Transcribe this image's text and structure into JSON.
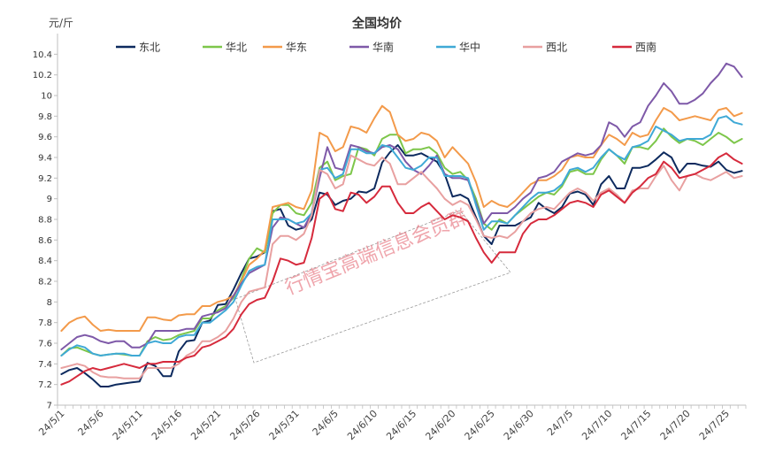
{
  "chart_data": {
    "type": "line",
    "title": "全国均价",
    "ylabel": "元/斤",
    "xlabel": "",
    "ylim": [
      7,
      10.6
    ],
    "yticks": [
      7,
      7.2,
      7.4,
      7.6,
      7.8,
      8,
      8.2,
      8.4,
      8.6,
      8.8,
      9,
      9.2,
      9.4,
      9.6,
      9.8,
      10,
      10.2,
      10.4
    ],
    "grid": false,
    "legend_position": "top",
    "x": [
      "24/5/1",
      "24/5/2",
      "24/5/3",
      "24/5/4",
      "24/5/5",
      "24/5/6",
      "24/5/7",
      "24/5/8",
      "24/5/9",
      "24/5/10",
      "24/5/11",
      "24/5/12",
      "24/5/13",
      "24/5/14",
      "24/5/15",
      "24/5/16",
      "24/5/17",
      "24/5/18",
      "24/5/19",
      "24/5/20",
      "24/5/21",
      "24/5/22",
      "24/5/23",
      "24/5/24",
      "24/5/25",
      "24/5/26",
      "24/5/27",
      "24/5/28",
      "24/5/29",
      "24/5/30",
      "24/5/31",
      "24/6/1",
      "24/6/2",
      "24/6/3",
      "24/6/4",
      "24/6/5",
      "24/6/6",
      "24/6/7",
      "24/6/8",
      "24/6/9",
      "24/6/10",
      "24/6/11",
      "24/6/12",
      "24/6/13",
      "24/6/14",
      "24/6/15",
      "24/6/16",
      "24/6/17",
      "24/6/18",
      "24/6/19",
      "24/6/20",
      "24/6/21",
      "24/6/22",
      "24/6/23",
      "24/6/24",
      "24/6/25",
      "24/6/26",
      "24/6/27",
      "24/6/28",
      "24/6/29",
      "24/6/30",
      "24/7/1",
      "24/7/2",
      "24/7/3",
      "24/7/4",
      "24/7/5",
      "24/7/6",
      "24/7/7",
      "24/7/8",
      "24/7/9",
      "24/7/10",
      "24/7/11",
      "24/7/12",
      "24/7/13",
      "24/7/14",
      "24/7/15",
      "24/7/16",
      "24/7/17",
      "24/7/18",
      "24/7/19",
      "24/7/20",
      "24/7/21",
      "24/7/22",
      "24/7/23",
      "24/7/24",
      "24/7/25",
      "24/7/26",
      "24/7/27"
    ],
    "xtick_labels": [
      "24/5/1",
      "24/5/6",
      "24/5/11",
      "24/5/16",
      "24/5/21",
      "24/5/26",
      "24/5/31",
      "24/6/5",
      "24/6/10",
      "24/6/15",
      "24/6/20",
      "24/6/25",
      "24/6/30",
      "24/7/5",
      "24/7/10",
      "24/7/15",
      "24/7/20",
      "24/7/25"
    ],
    "series": [
      {
        "name": "东北",
        "color": "#0d2a5e",
        "values": [
          7.3,
          7.34,
          7.36,
          7.31,
          7.25,
          7.18,
          7.18,
          7.2,
          7.21,
          7.22,
          7.23,
          7.41,
          7.38,
          7.28,
          7.28,
          7.52,
          7.62,
          7.63,
          7.8,
          7.82,
          7.97,
          7.98,
          8.12,
          8.28,
          8.42,
          8.44,
          8.48,
          8.88,
          8.9,
          8.74,
          8.7,
          8.72,
          8.8,
          9.06,
          9.04,
          8.94,
          8.98,
          9.0,
          9.07,
          9.06,
          9.1,
          9.35,
          9.45,
          9.52,
          9.42,
          9.42,
          9.44,
          9.4,
          9.36,
          9.24,
          9.02,
          9.04,
          9.0,
          8.82,
          8.64,
          8.56,
          8.74,
          8.74,
          8.74,
          8.78,
          8.82,
          8.96,
          8.9,
          8.86,
          8.92,
          9.05,
          9.07,
          9.04,
          8.94,
          9.14,
          9.22,
          9.1,
          9.1,
          9.3,
          9.3,
          9.32,
          9.38,
          9.45,
          9.4,
          9.25,
          9.34,
          9.34,
          9.32,
          9.31,
          9.36,
          9.28,
          9.25,
          9.27
        ]
      },
      {
        "name": "华北",
        "color": "#7dc64a",
        "values": [
          7.48,
          7.55,
          7.56,
          7.53,
          7.5,
          7.48,
          7.49,
          7.5,
          7.49,
          7.48,
          7.48,
          7.62,
          7.66,
          7.63,
          7.64,
          7.68,
          7.7,
          7.72,
          7.84,
          7.84,
          7.92,
          7.96,
          8.04,
          8.22,
          8.42,
          8.52,
          8.48,
          8.86,
          8.94,
          8.94,
          8.86,
          8.84,
          8.96,
          9.3,
          9.36,
          9.18,
          9.22,
          9.24,
          9.5,
          9.48,
          9.42,
          9.58,
          9.62,
          9.62,
          9.44,
          9.48,
          9.48,
          9.5,
          9.44,
          9.3,
          9.24,
          9.26,
          9.18,
          9.0,
          8.76,
          8.7,
          8.8,
          8.76,
          8.84,
          8.9,
          8.96,
          9.02,
          9.06,
          9.04,
          9.12,
          9.26,
          9.28,
          9.24,
          9.24,
          9.38,
          9.48,
          9.42,
          9.34,
          9.5,
          9.5,
          9.48,
          9.56,
          9.68,
          9.6,
          9.54,
          9.58,
          9.56,
          9.52,
          9.58,
          9.64,
          9.6,
          9.54,
          9.58
        ]
      },
      {
        "name": "华东",
        "color": "#f39a4a",
        "values": [
          7.72,
          7.8,
          7.84,
          7.86,
          7.78,
          7.72,
          7.73,
          7.72,
          7.72,
          7.72,
          7.72,
          7.85,
          7.85,
          7.83,
          7.82,
          7.87,
          7.88,
          7.88,
          7.96,
          7.96,
          8.0,
          8.02,
          8.06,
          8.2,
          8.36,
          8.42,
          8.5,
          8.92,
          8.94,
          8.96,
          8.92,
          8.9,
          9.08,
          9.64,
          9.6,
          9.46,
          9.5,
          9.7,
          9.68,
          9.64,
          9.78,
          9.9,
          9.84,
          9.62,
          9.56,
          9.58,
          9.64,
          9.62,
          9.56,
          9.4,
          9.5,
          9.42,
          9.34,
          9.16,
          8.92,
          8.98,
          8.94,
          8.92,
          8.98,
          9.06,
          9.14,
          9.18,
          9.18,
          9.22,
          9.28,
          9.4,
          9.42,
          9.4,
          9.4,
          9.52,
          9.62,
          9.58,
          9.52,
          9.64,
          9.6,
          9.62,
          9.76,
          9.88,
          9.84,
          9.76,
          9.78,
          9.8,
          9.78,
          9.76,
          9.86,
          9.88,
          9.8,
          9.83
        ]
      },
      {
        "name": "华南",
        "color": "#7e59a8",
        "values": [
          7.54,
          7.6,
          7.66,
          7.68,
          7.66,
          7.62,
          7.6,
          7.62,
          7.62,
          7.56,
          7.56,
          7.6,
          7.72,
          7.72,
          7.72,
          7.72,
          7.74,
          7.74,
          7.86,
          7.88,
          7.9,
          7.94,
          8.06,
          8.18,
          8.28,
          8.32,
          8.36,
          8.72,
          8.82,
          8.8,
          8.76,
          8.72,
          8.86,
          9.2,
          9.5,
          9.3,
          9.28,
          9.52,
          9.5,
          9.46,
          9.44,
          9.5,
          9.52,
          9.48,
          9.36,
          9.28,
          9.24,
          9.32,
          9.42,
          9.24,
          9.2,
          9.2,
          9.18,
          8.96,
          8.76,
          8.86,
          8.86,
          8.86,
          8.92,
          9.0,
          9.06,
          9.2,
          9.22,
          9.26,
          9.36,
          9.4,
          9.44,
          9.42,
          9.44,
          9.52,
          9.74,
          9.7,
          9.6,
          9.7,
          9.74,
          9.9,
          10.0,
          10.12,
          10.04,
          9.92,
          9.92,
          9.96,
          10.02,
          10.12,
          10.2,
          10.31,
          10.28,
          10.18
        ]
      },
      {
        "name": "华中",
        "color": "#3fa9d6",
        "values": [
          7.48,
          7.54,
          7.58,
          7.56,
          7.5,
          7.48,
          7.49,
          7.5,
          7.5,
          7.48,
          7.48,
          7.6,
          7.62,
          7.6,
          7.6,
          7.66,
          7.68,
          7.68,
          7.8,
          7.8,
          7.86,
          7.92,
          8.0,
          8.16,
          8.3,
          8.34,
          8.36,
          8.8,
          8.8,
          8.8,
          8.76,
          8.78,
          8.86,
          9.28,
          9.3,
          9.2,
          9.24,
          9.48,
          9.48,
          9.44,
          9.44,
          9.52,
          9.5,
          9.4,
          9.3,
          9.28,
          9.32,
          9.4,
          9.4,
          9.22,
          9.22,
          9.22,
          9.2,
          8.94,
          8.7,
          8.78,
          8.78,
          8.76,
          8.84,
          8.92,
          9.0,
          9.06,
          9.06,
          9.08,
          9.14,
          9.28,
          9.3,
          9.26,
          9.3,
          9.4,
          9.48,
          9.42,
          9.38,
          9.5,
          9.52,
          9.56,
          9.7,
          9.66,
          9.62,
          9.56,
          9.58,
          9.58,
          9.58,
          9.62,
          9.78,
          9.8,
          9.74,
          9.72
        ]
      },
      {
        "name": "西北",
        "color": "#e8a0a0",
        "values": [
          7.36,
          7.38,
          7.4,
          7.38,
          7.32,
          7.28,
          7.27,
          7.27,
          7.26,
          7.26,
          7.26,
          7.36,
          7.36,
          7.36,
          7.36,
          7.4,
          7.48,
          7.52,
          7.62,
          7.62,
          7.66,
          7.72,
          7.84,
          8.0,
          8.1,
          8.12,
          8.14,
          8.56,
          8.64,
          8.64,
          8.6,
          8.66,
          8.84,
          9.28,
          9.24,
          9.1,
          9.14,
          9.42,
          9.38,
          9.34,
          9.32,
          9.4,
          9.34,
          9.14,
          9.14,
          9.2,
          9.26,
          9.18,
          9.1,
          9.0,
          8.94,
          8.98,
          8.94,
          8.8,
          8.64,
          8.62,
          8.64,
          8.62,
          8.68,
          8.78,
          8.86,
          8.9,
          8.92,
          8.9,
          8.98,
          9.06,
          9.1,
          9.06,
          8.98,
          9.06,
          9.1,
          9.04,
          8.96,
          9.08,
          9.1,
          9.1,
          9.22,
          9.32,
          9.18,
          9.08,
          9.22,
          9.24,
          9.2,
          9.18,
          9.22,
          9.26,
          9.2,
          9.22
        ]
      },
      {
        "name": "西南",
        "color": "#d62a3c",
        "values": [
          7.2,
          7.23,
          7.28,
          7.33,
          7.36,
          7.34,
          7.36,
          7.38,
          7.4,
          7.38,
          7.36,
          7.4,
          7.4,
          7.42,
          7.42,
          7.42,
          7.46,
          7.48,
          7.56,
          7.58,
          7.62,
          7.66,
          7.74,
          7.88,
          7.98,
          8.02,
          8.04,
          8.2,
          8.42,
          8.4,
          8.36,
          8.38,
          8.62,
          9.0,
          9.06,
          8.9,
          8.88,
          9.06,
          9.04,
          8.96,
          9.02,
          9.12,
          9.12,
          8.96,
          8.86,
          8.86,
          8.92,
          8.96,
          8.88,
          8.8,
          8.84,
          8.82,
          8.78,
          8.62,
          8.48,
          8.38,
          8.48,
          8.48,
          8.48,
          8.66,
          8.76,
          8.8,
          8.8,
          8.84,
          8.9,
          8.96,
          8.98,
          8.96,
          8.92,
          9.04,
          9.08,
          9.02,
          8.96,
          9.06,
          9.12,
          9.2,
          9.24,
          9.36,
          9.3,
          9.2,
          9.22,
          9.24,
          9.28,
          9.32,
          9.4,
          9.44,
          9.38,
          9.34
        ]
      }
    ],
    "annotations": [
      "行情宝高端信息会员群"
    ]
  }
}
